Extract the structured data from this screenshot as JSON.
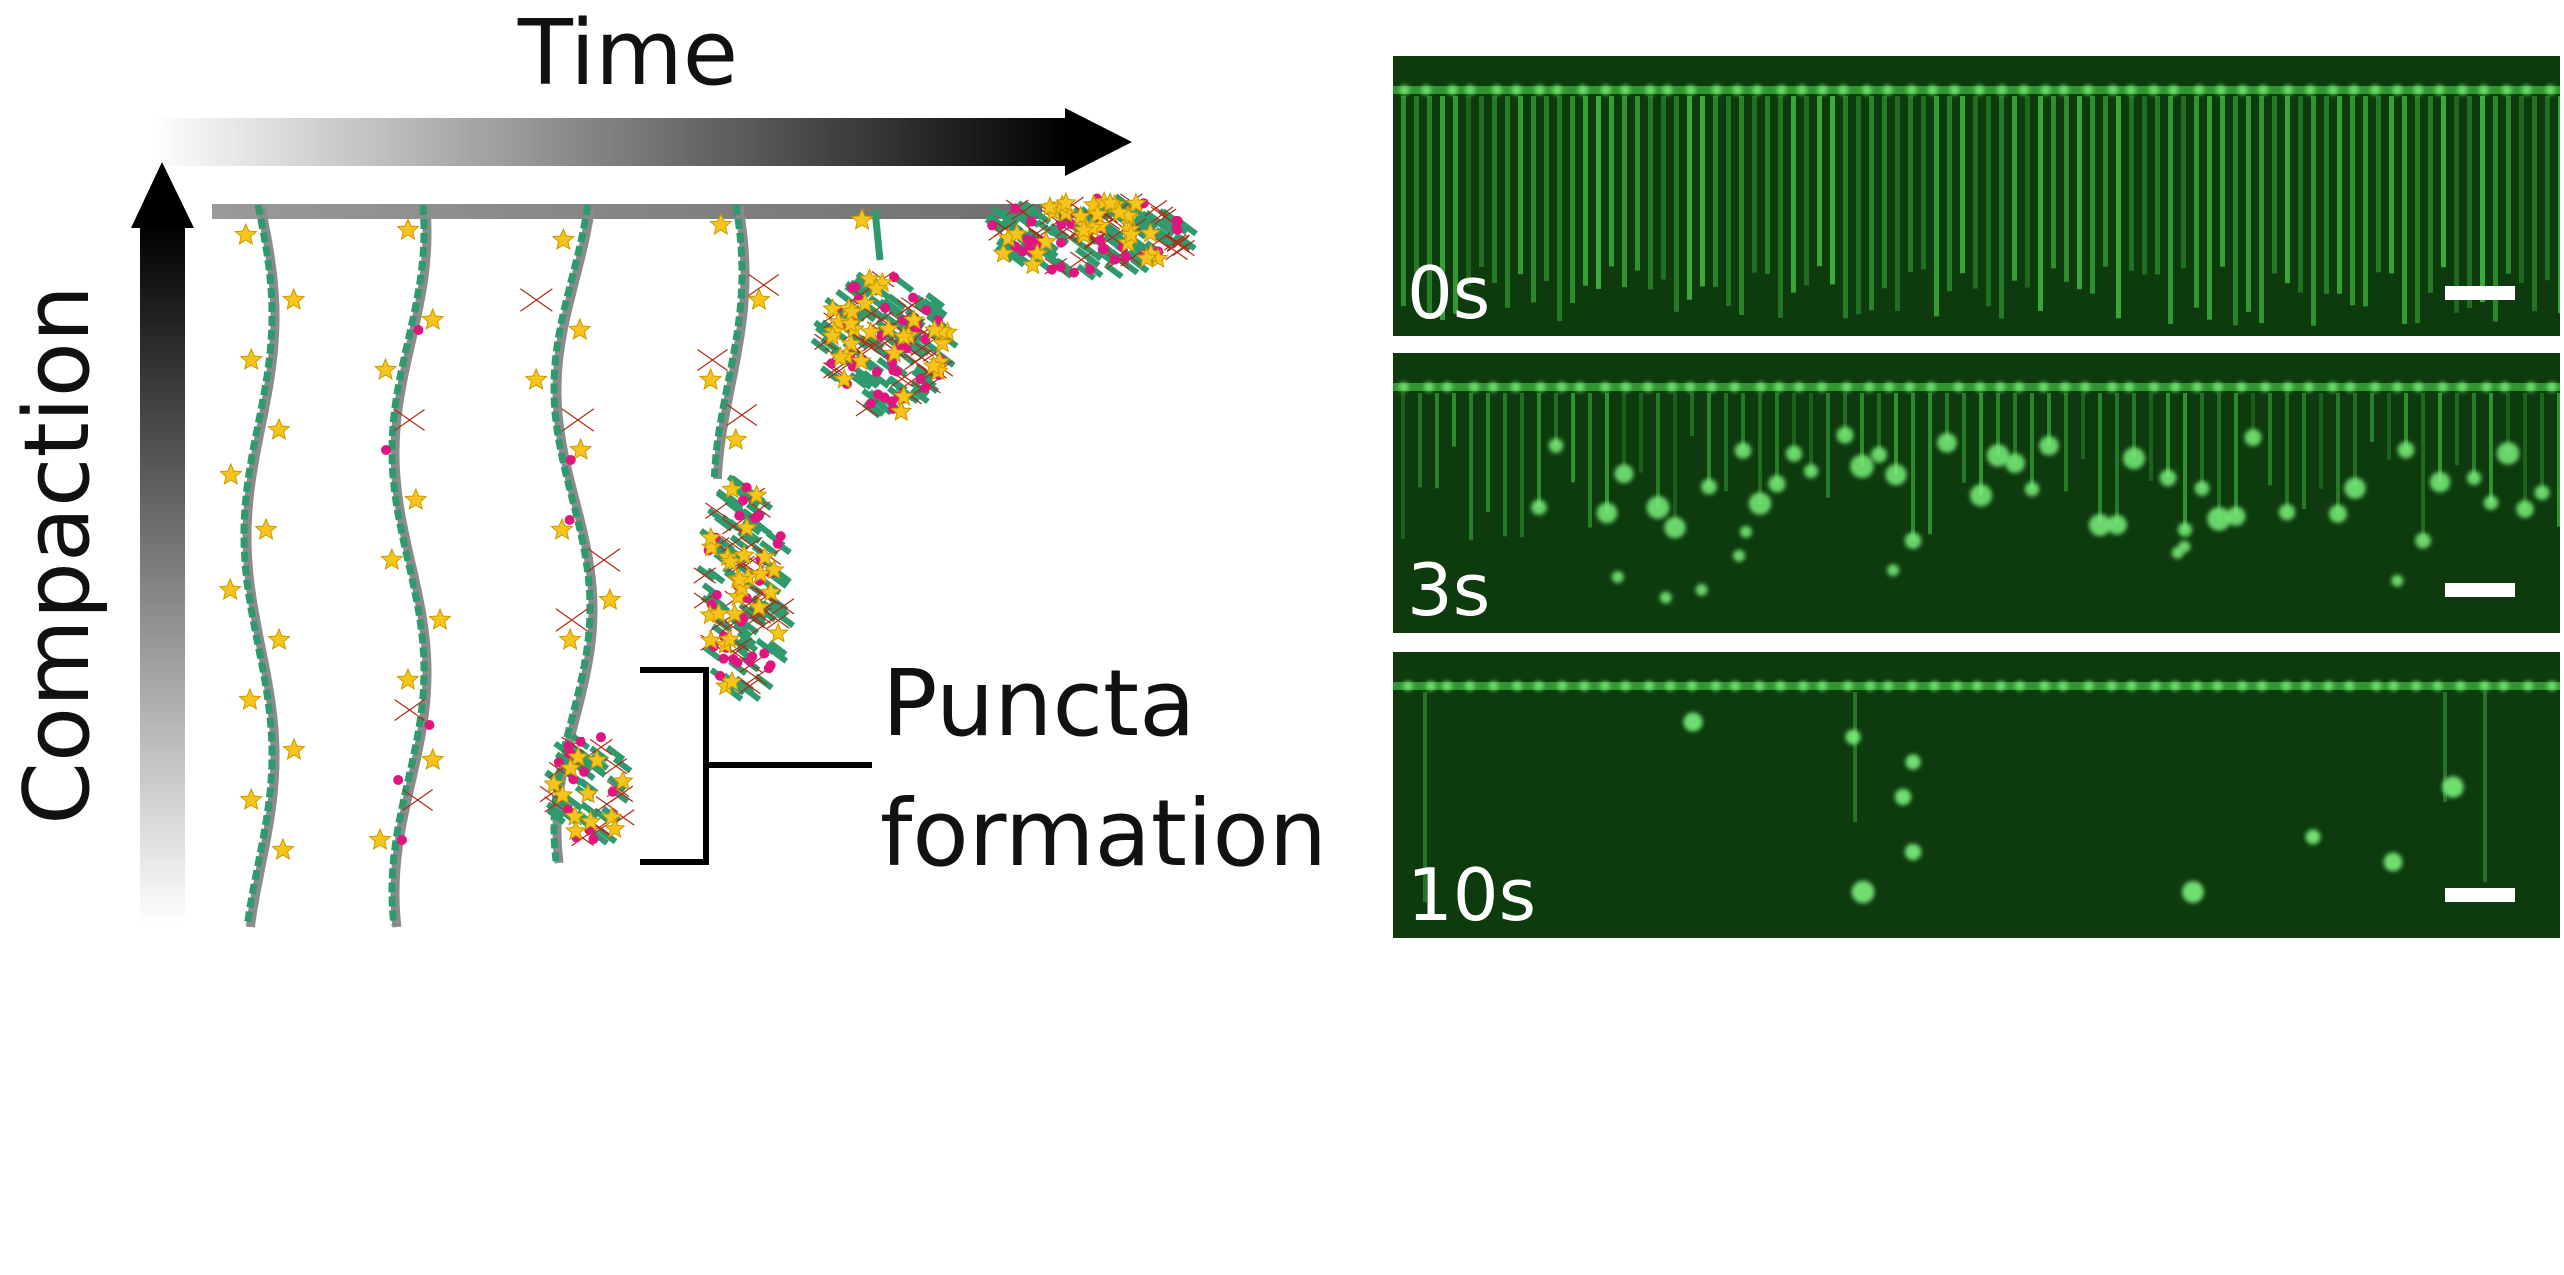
{
  "diagram": {
    "time_label": "Time",
    "compaction_label": "Compaction",
    "puncta_label_line1": "Puncta",
    "puncta_label_line2": "formation"
  },
  "panels": [
    {
      "time": "0s"
    },
    {
      "time": "3s"
    },
    {
      "time": "10s"
    }
  ],
  "colors": {
    "dna": "#2e9a6e",
    "dna_shadow": "#8b8b8b",
    "star": "#f7c41b",
    "protein_red": "#e8432b",
    "protein_magenta": "#e0157f",
    "microscopy_bg": "#0d3b0d",
    "microscopy_signal": "#4fe04f"
  }
}
